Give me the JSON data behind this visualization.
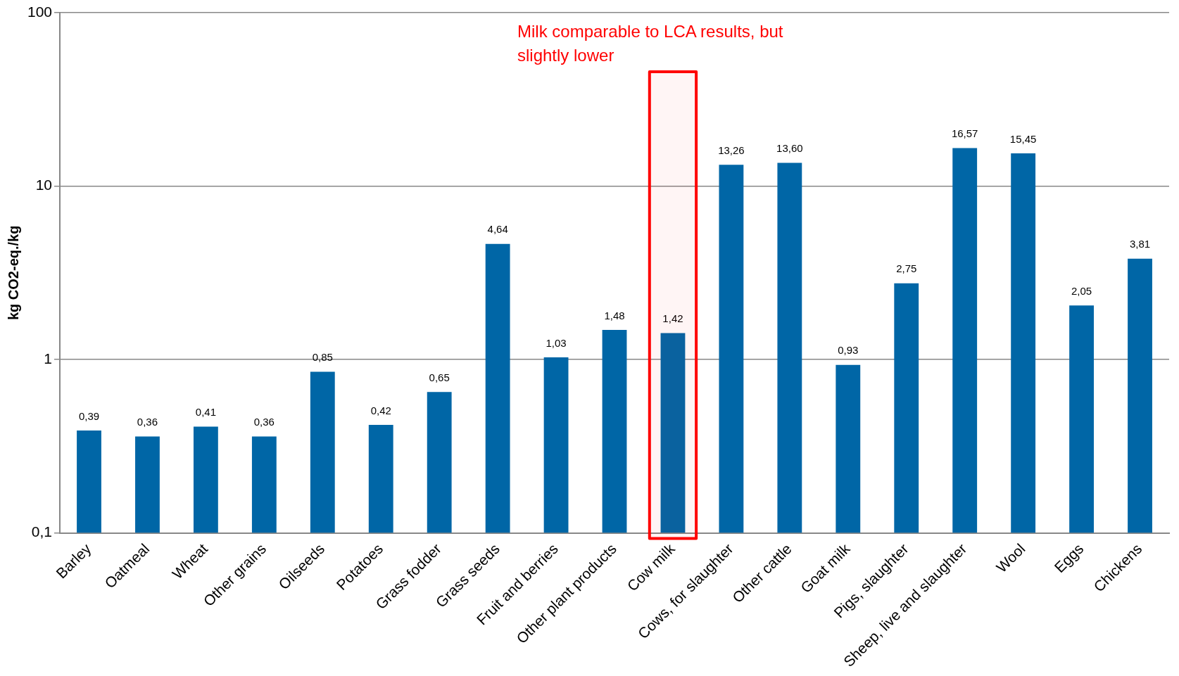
{
  "chart_data": {
    "type": "bar",
    "ylabel": "kg CO2-eq./kg",
    "categories": [
      "Barley",
      "Oatmeal",
      "Wheat",
      "Other grains",
      "Oilseeds",
      "Potatoes",
      "Grass fodder",
      "Grass seeds",
      "Fruit and berries",
      "Other plant products",
      "Cow milk",
      "Cows, for slaughter",
      "Other cattle",
      "Goat milk",
      "Pigs, slaughter",
      "Sheep, live and slaughter",
      "Wool",
      "Eggs",
      "Chickens"
    ],
    "values": [
      0.39,
      0.36,
      0.41,
      0.36,
      0.85,
      0.42,
      0.65,
      4.64,
      1.03,
      1.48,
      1.42,
      13.26,
      13.6,
      0.93,
      2.75,
      16.57,
      15.45,
      2.05,
      3.81
    ],
    "value_labels": [
      "0,39",
      "0,36",
      "0,41",
      "0,36",
      "0,85",
      "0,42",
      "0,65",
      "4,64",
      "1,03",
      "1,48",
      "1,42",
      "13,26",
      "13,60",
      "0,93",
      "2,75",
      "16,57",
      "15,45",
      "2,05",
      "3,81"
    ],
    "color": "#0066a6",
    "log": "y",
    "ylim": [
      0.1,
      100
    ],
    "yticks": [
      {
        "value": 0.1,
        "label": "0,1"
      },
      1,
      10,
      100
    ],
    "grid": "y",
    "bands": [
      {
        "axis": "x",
        "from": "Cow milk",
        "to": "Cow milk",
        "color": "#ff0000"
      }
    ],
    "annotations": [
      "Milk comparable to LCA results, but slightly lower"
    ]
  }
}
